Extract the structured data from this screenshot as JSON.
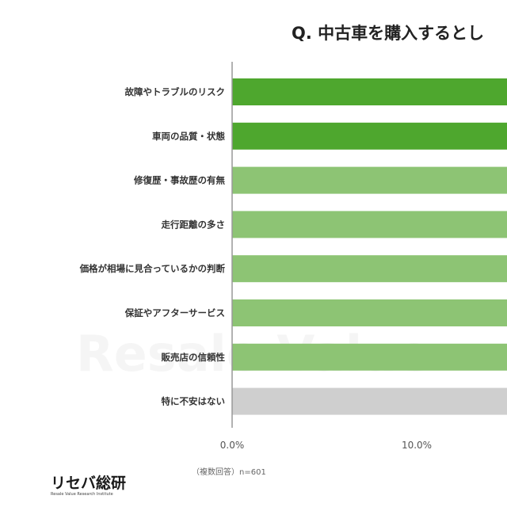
{
  "title": "Q. 中古車を購入するとし",
  "footnote": "（複数回答）n=601",
  "logo": {
    "text": "リセバ総研",
    "subtext": "Resale Value Research Institute",
    "watermark": "Resale Value"
  },
  "colors": {
    "dark_green": "#4ea72e",
    "light_green": "#8dc474",
    "gray": "#cfcfcf",
    "axis": "#999999"
  },
  "chart_data": {
    "type": "bar",
    "orientation": "horizontal",
    "categories": [
      "故障やトラブルのリスク",
      "車両の品質・状態",
      "修復歴・事故歴の有無",
      "走行距離の多さ",
      "価格が相場に見合っているかの判断",
      "保証やアフターサービス",
      "販売店の信頼性",
      "特に不安はない"
    ],
    "values": [
      null,
      null,
      null,
      null,
      null,
      null,
      null,
      null
    ],
    "bar_colors": [
      "dark_green",
      "dark_green",
      "light_green",
      "light_green",
      "light_green",
      "light_green",
      "light_green",
      "gray"
    ],
    "x_ticks": [
      "0.0%",
      "10.0%"
    ],
    "x_tick_values": [
      0,
      10
    ],
    "xlim_visible": [
      0,
      15.4
    ],
    "grid": false
  }
}
